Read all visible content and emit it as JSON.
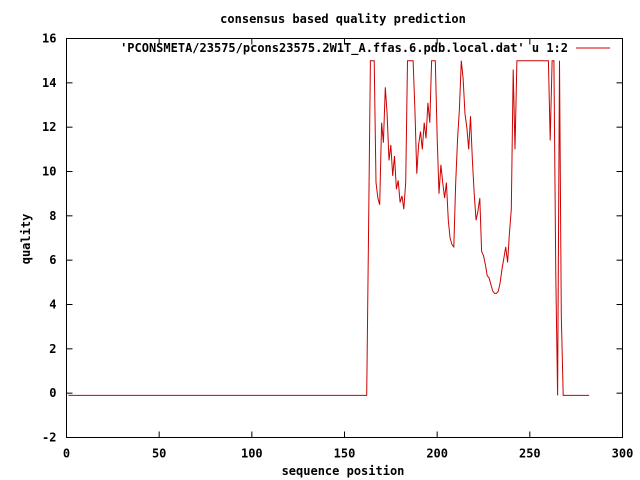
{
  "chart_data": {
    "type": "line",
    "title": "consensus based quality prediction",
    "xlabel": "sequence position",
    "ylabel": "quality",
    "xlim": [
      0,
      300
    ],
    "ylim": [
      -2,
      16
    ],
    "xticks": [
      "0",
      "50",
      "100",
      "150",
      "200",
      "250",
      "300"
    ],
    "yticks": [
      "-2",
      "0",
      "2",
      "4",
      "6",
      "8",
      "10",
      "12",
      "14",
      "16"
    ],
    "grid": false,
    "legend_position": "top-right",
    "series": [
      {
        "name": "'PCONSMETA/23575/pcons23575.2W1T_A.ffas.6.pdb.local.dat' u 1:2",
        "color": "#cc0000",
        "points": [
          [
            1,
            -0.1
          ],
          [
            162,
            -0.1
          ],
          [
            163,
            7.5
          ],
          [
            164,
            15
          ],
          [
            166,
            15
          ],
          [
            167,
            9.5
          ],
          [
            168,
            8.8
          ],
          [
            169,
            8.5
          ],
          [
            170,
            12.2
          ],
          [
            171,
            11.3
          ],
          [
            172,
            13.8
          ],
          [
            173,
            12.6
          ],
          [
            174,
            10.5
          ],
          [
            175,
            11.2
          ],
          [
            176,
            9.8
          ],
          [
            177,
            10.7
          ],
          [
            178,
            9.2
          ],
          [
            179,
            9.6
          ],
          [
            180,
            8.6
          ],
          [
            181,
            8.9
          ],
          [
            182,
            8.3
          ],
          [
            183,
            9.5
          ],
          [
            184,
            15
          ],
          [
            187,
            15
          ],
          [
            188,
            12.8
          ],
          [
            189,
            9.9
          ],
          [
            190,
            11.2
          ],
          [
            191,
            11.8
          ],
          [
            192,
            11.0
          ],
          [
            193,
            12.2
          ],
          [
            194,
            11.5
          ],
          [
            195,
            13.1
          ],
          [
            196,
            12.2
          ],
          [
            197,
            15
          ],
          [
            199,
            15
          ],
          [
            200,
            11.5
          ],
          [
            201,
            9.0
          ],
          [
            202,
            10.3
          ],
          [
            203,
            9.5
          ],
          [
            204,
            8.8
          ],
          [
            205,
            9.5
          ],
          [
            206,
            7.8
          ],
          [
            207,
            7.0
          ],
          [
            208,
            6.7
          ],
          [
            209,
            6.6
          ],
          [
            210,
            9.5
          ],
          [
            211,
            11.5
          ],
          [
            212,
            12.8
          ],
          [
            213,
            15
          ],
          [
            214,
            14.2
          ],
          [
            215,
            12.6
          ],
          [
            216,
            12.0
          ],
          [
            217,
            11.0
          ],
          [
            218,
            12.5
          ],
          [
            219,
            10.5
          ],
          [
            220,
            9.0
          ],
          [
            221,
            7.8
          ],
          [
            222,
            8.2
          ],
          [
            223,
            8.8
          ],
          [
            224,
            6.4
          ],
          [
            225,
            6.2
          ],
          [
            226,
            5.8
          ],
          [
            227,
            5.3
          ],
          [
            228,
            5.2
          ],
          [
            229,
            4.9
          ],
          [
            230,
            4.6
          ],
          [
            231,
            4.5
          ],
          [
            232,
            4.5
          ],
          [
            233,
            4.6
          ],
          [
            234,
            5.0
          ],
          [
            235,
            5.6
          ],
          [
            236,
            6.1
          ],
          [
            237,
            6.6
          ],
          [
            238,
            5.9
          ],
          [
            239,
            7.2
          ],
          [
            240,
            8.3
          ],
          [
            241,
            14.6
          ],
          [
            242,
            11.0
          ],
          [
            243,
            15
          ],
          [
            260,
            15
          ],
          [
            261,
            11.4
          ],
          [
            262,
            15
          ],
          [
            263,
            15
          ],
          [
            264,
            5.3
          ],
          [
            265,
            -0.1
          ],
          [
            266,
            15
          ],
          [
            267,
            3.5
          ],
          [
            268,
            -0.1
          ],
          [
            282,
            -0.1
          ]
        ]
      }
    ]
  }
}
